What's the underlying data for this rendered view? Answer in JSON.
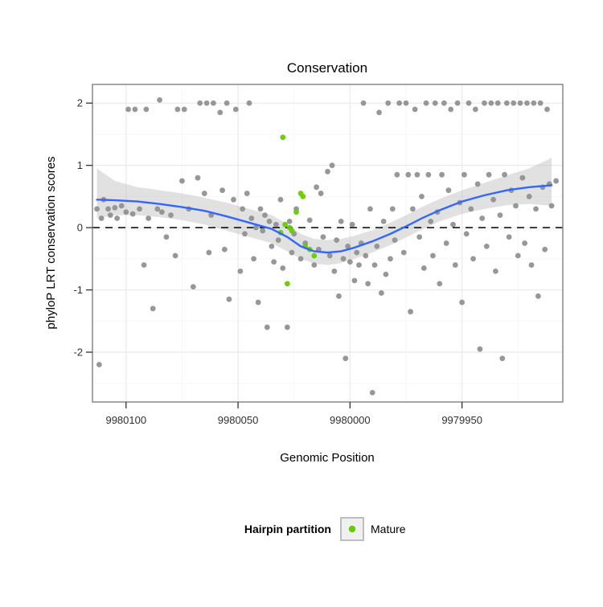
{
  "chart_data": {
    "type": "scatter",
    "title": "Conservation",
    "xlabel": "Genomic Position",
    "ylabel": "phyloP LRT conservation scores",
    "x_axis_reversed": true,
    "xlim": [
      9980115,
      9979905
    ],
    "ylim": [
      -2.8,
      2.3
    ],
    "x_ticks": [
      9980100,
      9980050,
      9980000,
      9979950
    ],
    "y_ticks": [
      -2,
      -1,
      0,
      1,
      2
    ],
    "grid": true,
    "hline": 0,
    "colors": {
      "other_points": "#919191",
      "mature_points": "#66CC00",
      "smooth_line": "#3366FF",
      "band": "#bdbdbd",
      "hline": "#000000",
      "grid_major": "#ebebeb",
      "grid_minor": "#f5f5f5",
      "panel_border": "#7f7f7f"
    },
    "series": [
      {
        "name": "Other",
        "type": "points",
        "color_key": "other_points",
        "points": [
          [
            9980113,
            0.3
          ],
          [
            9980112,
            -2.2
          ],
          [
            9980111,
            0.15
          ],
          [
            9980110,
            0.45
          ],
          [
            9980108,
            0.3
          ],
          [
            9980107,
            0.2
          ],
          [
            9980105,
            0.32
          ],
          [
            9980104,
            0.15
          ],
          [
            9980102,
            0.35
          ],
          [
            9980100,
            0.25
          ],
          [
            9980099,
            1.9
          ],
          [
            9980097,
            0.22
          ],
          [
            9980096,
            1.9
          ],
          [
            9980094,
            0.3
          ],
          [
            9980092,
            -0.6
          ],
          [
            9980091,
            1.9
          ],
          [
            9980090,
            0.15
          ],
          [
            9980088,
            -1.3
          ],
          [
            9980086,
            0.3
          ],
          [
            9980085,
            2.05
          ],
          [
            9980084,
            0.25
          ],
          [
            9980082,
            -0.15
          ],
          [
            9980080,
            0.2
          ],
          [
            9980078,
            -0.45
          ],
          [
            9980077,
            1.9
          ],
          [
            9980075,
            0.75
          ],
          [
            9980074,
            1.9
          ],
          [
            9980072,
            0.3
          ],
          [
            9980070,
            -0.95
          ],
          [
            9980068,
            0.8
          ],
          [
            9980067,
            2.0
          ],
          [
            9980065,
            0.55
          ],
          [
            9980064,
            2.0
          ],
          [
            9980063,
            -0.4
          ],
          [
            9980062,
            0.2
          ],
          [
            9980061,
            2.0
          ],
          [
            9980058,
            1.85
          ],
          [
            9980057,
            0.6
          ],
          [
            9980056,
            -0.35
          ],
          [
            9980055,
            2.0
          ],
          [
            9980054,
            -1.15
          ],
          [
            9980052,
            0.45
          ],
          [
            9980051,
            1.9
          ],
          [
            9980049,
            -0.7
          ],
          [
            9980048,
            0.3
          ],
          [
            9980047,
            -0.1
          ],
          [
            9980046,
            0.55
          ],
          [
            9980045,
            2.0
          ],
          [
            9980044,
            0.15
          ],
          [
            9980043,
            -0.5
          ],
          [
            9980042,
            0.0
          ],
          [
            9980041,
            -1.2
          ],
          [
            9980040,
            0.3
          ],
          [
            9980039,
            -0.05
          ],
          [
            9980038,
            0.2
          ],
          [
            9980037,
            -1.6
          ],
          [
            9980036,
            0.1
          ],
          [
            9980035,
            -0.3
          ],
          [
            9980034,
            -0.55
          ],
          [
            9980033,
            0.05
          ],
          [
            9980032,
            -0.2
          ],
          [
            9980031,
            0.45
          ],
          [
            9980030,
            -0.65
          ],
          [
            9980028,
            -1.6
          ],
          [
            9980027,
            0.1
          ],
          [
            9980026,
            -0.4
          ],
          [
            9980025,
            -0.1
          ],
          [
            9980024,
            0.3
          ],
          [
            9980022,
            -0.5
          ],
          [
            9980020,
            -0.25
          ],
          [
            9980018,
            0.12
          ],
          [
            9980016,
            -0.6
          ],
          [
            9980015,
            0.65
          ],
          [
            9980014,
            -0.35
          ],
          [
            9980013,
            0.55
          ],
          [
            9980012,
            -0.15
          ],
          [
            9980010,
            0.9
          ],
          [
            9980009,
            -0.45
          ],
          [
            9980008,
            1.0
          ],
          [
            9980007,
            -0.7
          ],
          [
            9980006,
            -0.2
          ],
          [
            9980005,
            -1.1
          ],
          [
            9980004,
            0.1
          ],
          [
            9980003,
            -0.5
          ],
          [
            9980002,
            -2.1
          ],
          [
            9980001,
            -0.3
          ],
          [
            9980000,
            -0.55
          ],
          [
            9979999,
            0.05
          ],
          [
            9979998,
            -0.85
          ],
          [
            9979997,
            -0.4
          ],
          [
            9979996,
            -0.6
          ],
          [
            9979995,
            -0.25
          ],
          [
            9979994,
            2.0
          ],
          [
            9979993,
            -0.45
          ],
          [
            9979992,
            -0.9
          ],
          [
            9979991,
            0.3
          ],
          [
            9979990,
            -2.65
          ],
          [
            9979989,
            -0.6
          ],
          [
            9979988,
            -0.3
          ],
          [
            9979987,
            1.85
          ],
          [
            9979986,
            -1.05
          ],
          [
            9979985,
            0.1
          ],
          [
            9979984,
            -0.75
          ],
          [
            9979983,
            2.0
          ],
          [
            9979982,
            -0.5
          ],
          [
            9979981,
            0.3
          ],
          [
            9979980,
            -0.2
          ],
          [
            9979979,
            0.85
          ],
          [
            9979978,
            2.0
          ],
          [
            9979976,
            -0.4
          ],
          [
            9979975,
            2.0
          ],
          [
            9979974,
            0.85
          ],
          [
            9979973,
            -1.35
          ],
          [
            9979972,
            0.3
          ],
          [
            9979971,
            1.9
          ],
          [
            9979970,
            0.85
          ],
          [
            9979969,
            -0.15
          ],
          [
            9979968,
            0.5
          ],
          [
            9979967,
            -0.65
          ],
          [
            9979966,
            2.0
          ],
          [
            9979965,
            0.85
          ],
          [
            9979964,
            0.1
          ],
          [
            9979963,
            -0.45
          ],
          [
            9979962,
            2.0
          ],
          [
            9979961,
            0.25
          ],
          [
            9979960,
            -0.9
          ],
          [
            9979959,
            0.85
          ],
          [
            9979958,
            2.0
          ],
          [
            9979957,
            -0.25
          ],
          [
            9979956,
            0.6
          ],
          [
            9979955,
            1.9
          ],
          [
            9979954,
            0.05
          ],
          [
            9979953,
            -0.6
          ],
          [
            9979952,
            2.0
          ],
          [
            9979951,
            0.4
          ],
          [
            9979950,
            -1.2
          ],
          [
            9979949,
            0.85
          ],
          [
            9979948,
            -0.1
          ],
          [
            9979947,
            2.0
          ],
          [
            9979946,
            0.3
          ],
          [
            9979945,
            -0.5
          ],
          [
            9979944,
            1.9
          ],
          [
            9979943,
            0.7
          ],
          [
            9979942,
            -1.95
          ],
          [
            9979941,
            0.15
          ],
          [
            9979940,
            2.0
          ],
          [
            9979939,
            -0.3
          ],
          [
            9979938,
            0.85
          ],
          [
            9979937,
            2.0
          ],
          [
            9979936,
            0.45
          ],
          [
            9979935,
            -0.7
          ],
          [
            9979934,
            2.0
          ],
          [
            9979933,
            0.2
          ],
          [
            9979932,
            -2.1
          ],
          [
            9979931,
            0.85
          ],
          [
            9979930,
            2.0
          ],
          [
            9979929,
            -0.15
          ],
          [
            9979928,
            0.6
          ],
          [
            9979927,
            2.0
          ],
          [
            9979926,
            0.35
          ],
          [
            9979925,
            -0.45
          ],
          [
            9979924,
            2.0
          ],
          [
            9979923,
            0.8
          ],
          [
            9979922,
            -0.25
          ],
          [
            9979921,
            2.0
          ],
          [
            9979920,
            0.5
          ],
          [
            9979919,
            -0.6
          ],
          [
            9979918,
            2.0
          ],
          [
            9979917,
            0.3
          ],
          [
            9979916,
            -1.1
          ],
          [
            9979915,
            2.0
          ],
          [
            9979914,
            0.65
          ],
          [
            9979913,
            -0.35
          ],
          [
            9979912,
            1.9
          ],
          [
            9979911,
            0.7
          ],
          [
            9979910,
            0.35
          ],
          [
            9979908,
            0.75
          ]
        ]
      },
      {
        "name": "Mature",
        "type": "points",
        "color_key": "mature_points",
        "points": [
          [
            9980030,
            1.45
          ],
          [
            9980022,
            0.55
          ],
          [
            9980021,
            0.5
          ],
          [
            9980024,
            0.25
          ],
          [
            9980029,
            0.05
          ],
          [
            9980027,
            0.0
          ],
          [
            9980026,
            -0.05
          ],
          [
            9980031,
            -0.08
          ],
          [
            9980020,
            -0.3
          ],
          [
            9980018,
            -0.35
          ],
          [
            9980016,
            -0.45
          ],
          [
            9980028,
            -0.9
          ]
        ]
      }
    ],
    "smooth": {
      "line": [
        [
          9980113,
          0.45
        ],
        [
          9980105,
          0.44
        ],
        [
          9980095,
          0.42
        ],
        [
          9980085,
          0.38
        ],
        [
          9980075,
          0.33
        ],
        [
          9980065,
          0.27
        ],
        [
          9980055,
          0.18
        ],
        [
          9980045,
          0.08
        ],
        [
          9980035,
          -0.02
        ],
        [
          9980028,
          -0.15
        ],
        [
          9980022,
          -0.3
        ],
        [
          9980016,
          -0.38
        ],
        [
          9980010,
          -0.4
        ],
        [
          9980004,
          -0.38
        ],
        [
          9979998,
          -0.32
        ],
        [
          9979990,
          -0.22
        ],
        [
          9979982,
          -0.1
        ],
        [
          9979975,
          0.02
        ],
        [
          9979968,
          0.15
        ],
        [
          9979960,
          0.28
        ],
        [
          9979950,
          0.42
        ],
        [
          9979940,
          0.52
        ],
        [
          9979930,
          0.6
        ],
        [
          9979920,
          0.65
        ],
        [
          9979910,
          0.68
        ]
      ],
      "band": [
        [
          9980113,
          0.15,
          0.95
        ],
        [
          9980105,
          0.2,
          0.75
        ],
        [
          9980095,
          0.2,
          0.65
        ],
        [
          9980085,
          0.17,
          0.6
        ],
        [
          9980075,
          0.12,
          0.55
        ],
        [
          9980065,
          0.05,
          0.48
        ],
        [
          9980055,
          -0.05,
          0.4
        ],
        [
          9980045,
          -0.15,
          0.3
        ],
        [
          9980035,
          -0.25,
          0.2
        ],
        [
          9980028,
          -0.38,
          0.06
        ],
        [
          9980022,
          -0.5,
          -0.1
        ],
        [
          9980016,
          -0.58,
          -0.18
        ],
        [
          9980010,
          -0.6,
          -0.2
        ],
        [
          9980004,
          -0.57,
          -0.18
        ],
        [
          9979998,
          -0.5,
          -0.13
        ],
        [
          9979990,
          -0.4,
          -0.04
        ],
        [
          9979982,
          -0.28,
          0.08
        ],
        [
          9979975,
          -0.16,
          0.2
        ],
        [
          9979968,
          -0.03,
          0.33
        ],
        [
          9979960,
          0.1,
          0.46
        ],
        [
          9979950,
          0.22,
          0.6
        ],
        [
          9979940,
          0.3,
          0.72
        ],
        [
          9979930,
          0.36,
          0.84
        ],
        [
          9979920,
          0.38,
          0.95
        ],
        [
          9979910,
          0.35,
          1.12
        ]
      ]
    },
    "legend": {
      "title": "Hairpin partition",
      "position": "bottom",
      "items": [
        {
          "label": "Mature",
          "color": "#66CC00"
        }
      ]
    }
  }
}
